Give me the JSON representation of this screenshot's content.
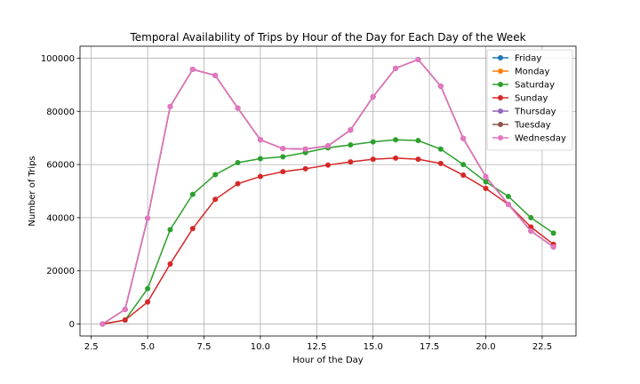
{
  "chart_data": {
    "type": "line",
    "title": "Temporal Availability of Trips by Hour of the Day for Each Day of the Week",
    "xlabel": "Hour of the Day",
    "ylabel": "Number of Trips",
    "xlim": [
      2.0,
      24.0
    ],
    "ylim": [
      -4500,
      104500
    ],
    "xticks": [
      2.5,
      5.0,
      7.5,
      10.0,
      12.5,
      15.0,
      17.5,
      20.0,
      22.5
    ],
    "xtick_labels": [
      "2.5",
      "5.0",
      "7.5",
      "10.0",
      "12.5",
      "15.0",
      "17.5",
      "20.0",
      "22.5"
    ],
    "yticks": [
      0,
      20000,
      40000,
      60000,
      80000,
      100000
    ],
    "ytick_labels": [
      "0",
      "20000",
      "40000",
      "60000",
      "80000",
      "100000"
    ],
    "grid": true,
    "legend_position": "top-right",
    "x": [
      3,
      4,
      5,
      6,
      7,
      8,
      9,
      10,
      11,
      12,
      13,
      14,
      15,
      16,
      17,
      18,
      19,
      20,
      21,
      22,
      23
    ],
    "series": [
      {
        "name": "Friday",
        "color": "#1f77b4",
        "values": [
          0,
          5500,
          39800,
          81800,
          95800,
          93500,
          81200,
          69300,
          66000,
          65800,
          67000,
          73000,
          85500,
          96200,
          99500,
          89500,
          69800,
          55400,
          45000,
          35000,
          29000
        ]
      },
      {
        "name": "Monday",
        "color": "#ff7f0e",
        "values": [
          0,
          5500,
          39800,
          81800,
          95800,
          93500,
          81200,
          69300,
          66000,
          65800,
          67000,
          73000,
          85500,
          96200,
          99500,
          89500,
          69800,
          55400,
          45000,
          35000,
          29000
        ]
      },
      {
        "name": "Saturday",
        "color": "#2ca02c",
        "values": [
          0,
          1500,
          13300,
          35500,
          48800,
          56200,
          60700,
          62200,
          62900,
          64500,
          66300,
          67400,
          68500,
          69300,
          69000,
          65800,
          60000,
          53500,
          48000,
          40000,
          34200
        ]
      },
      {
        "name": "Sunday",
        "color": "#d62728",
        "values": [
          0,
          1500,
          8300,
          22600,
          35900,
          46900,
          52800,
          55500,
          57300,
          58400,
          59800,
          61000,
          62000,
          62400,
          62000,
          60400,
          56000,
          51000,
          45000,
          36500,
          30000
        ]
      },
      {
        "name": "Thursday",
        "color": "#9467bd",
        "values": [
          0,
          5500,
          39800,
          81800,
          95800,
          93500,
          81200,
          69300,
          66000,
          65800,
          67000,
          73000,
          85500,
          96200,
          99500,
          89500,
          69800,
          55400,
          45000,
          35000,
          29000
        ]
      },
      {
        "name": "Tuesday",
        "color": "#8c564b",
        "values": [
          0,
          5500,
          39800,
          81800,
          95800,
          93500,
          81200,
          69300,
          66000,
          65800,
          67000,
          73000,
          85500,
          96200,
          99500,
          89500,
          69800,
          55400,
          45000,
          35000,
          29000
        ]
      },
      {
        "name": "Wednesday",
        "color": "#e377c2",
        "values": [
          0,
          5500,
          39800,
          81800,
          95800,
          93500,
          81200,
          69300,
          66000,
          65800,
          67000,
          73000,
          85500,
          96200,
          99500,
          89500,
          69800,
          55400,
          45000,
          35000,
          29000
        ]
      }
    ]
  }
}
